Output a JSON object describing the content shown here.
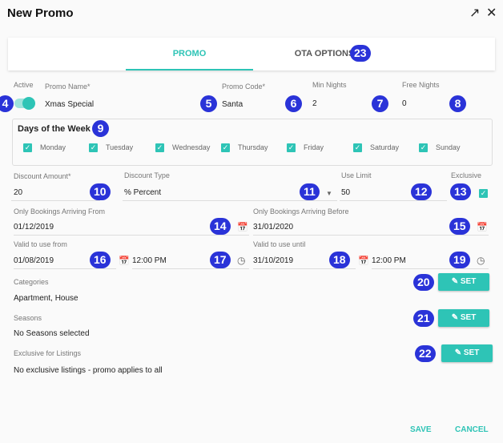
{
  "dialog": {
    "title": "New Promo",
    "expand_icon": "arrow-up-right-icon",
    "close_icon": "close-icon"
  },
  "tabs": [
    {
      "label": "PROMO",
      "active": true
    },
    {
      "label": "OTA OPTIONS",
      "active": false
    }
  ],
  "fields": {
    "active": {
      "label": "Active",
      "on": true
    },
    "promo_name": {
      "label": "Promo Name*",
      "value": "Xmas Special"
    },
    "promo_code": {
      "label": "Promo Code*",
      "value": "Santa"
    },
    "min_nights": {
      "label": "Min Nights",
      "value": "2"
    },
    "free_nights": {
      "label": "Free Nights",
      "value": "0"
    },
    "discount_amount": {
      "label": "Discount Amount*",
      "value": "20"
    },
    "discount_type": {
      "label": "Discount Type",
      "value": "% Percent"
    },
    "use_limit": {
      "label": "Use Limit",
      "value": "50"
    },
    "exclusive": {
      "label": "Exclusive",
      "checked": true
    },
    "arriving_from": {
      "label": "Only Bookings Arriving From",
      "value": "01/12/2019"
    },
    "arriving_before": {
      "label": "Only Bookings Arriving Before",
      "value": "31/01/2020"
    },
    "valid_from": {
      "label": "Valid to use from",
      "date": "01/08/2019",
      "time": "12:00 PM"
    },
    "valid_until": {
      "label": "Valid to use until",
      "date": "31/10/2019",
      "time": "12:00 PM"
    }
  },
  "days": {
    "title": "Days of the Week",
    "items": [
      {
        "label": "Monday",
        "checked": true
      },
      {
        "label": "Tuesday",
        "checked": true
      },
      {
        "label": "Wednesday",
        "checked": true
      },
      {
        "label": "Thursday",
        "checked": true
      },
      {
        "label": "Friday",
        "checked": true
      },
      {
        "label": "Saturday",
        "checked": true
      },
      {
        "label": "Sunday",
        "checked": true
      }
    ]
  },
  "sections": {
    "categories": {
      "label": "Categories",
      "value": "Apartment, House",
      "button": "SET"
    },
    "seasons": {
      "label": "Seasons",
      "value": "No Seasons selected",
      "button": "SET"
    },
    "listings": {
      "label": "Exclusive for Listings",
      "value": "No exclusive listings - promo applies to all",
      "button": "SET"
    }
  },
  "footer": {
    "save": "SAVE",
    "cancel": "CANCEL"
  },
  "badges": [
    "4",
    "5",
    "6",
    "7",
    "8",
    "9",
    "10",
    "11",
    "12",
    "13",
    "14",
    "15",
    "16",
    "17",
    "18",
    "19",
    "20",
    "21",
    "22",
    "23"
  ],
  "colors": {
    "accent": "#2ec4b6",
    "badge": "#2a33d8"
  }
}
